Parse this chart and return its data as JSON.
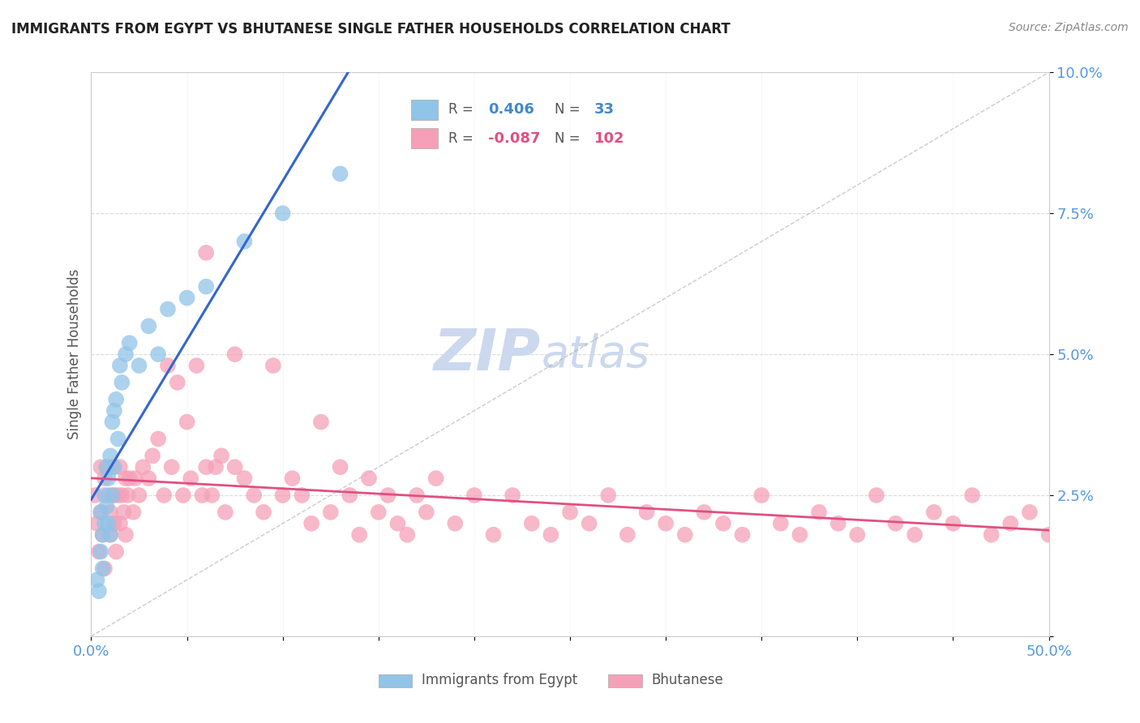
{
  "title": "IMMIGRANTS FROM EGYPT VS BHUTANESE SINGLE FATHER HOUSEHOLDS CORRELATION CHART",
  "source": "Source: ZipAtlas.com",
  "ylabel": "Single Father Households",
  "xlim": [
    0.0,
    0.5
  ],
  "ylim": [
    0.0,
    0.1
  ],
  "yticks": [
    0.0,
    0.025,
    0.05,
    0.075,
    0.1
  ],
  "ytick_labels": [
    "",
    "2.5%",
    "5.0%",
    "7.5%",
    "10.0%"
  ],
  "xtick_labels": [
    "0.0%",
    "",
    "",
    "",
    "",
    "",
    "",
    "",
    "",
    "",
    "50.0%"
  ],
  "blue_R": 0.406,
  "blue_N": 33,
  "pink_R": -0.087,
  "pink_N": 102,
  "blue_color": "#90c4e8",
  "pink_color": "#f5a0b8",
  "blue_line_color": "#3366cc",
  "pink_line_color": "#e05080",
  "grid_color": "#cccccc",
  "title_color": "#222222",
  "axis_color": "#5599dd",
  "watermark_color": "#ccd8ee",
  "legend_bg": "#eef3fb",
  "blue_scatter_x": [
    0.003,
    0.004,
    0.005,
    0.005,
    0.006,
    0.006,
    0.007,
    0.007,
    0.008,
    0.008,
    0.009,
    0.009,
    0.01,
    0.01,
    0.011,
    0.011,
    0.012,
    0.012,
    0.013,
    0.014,
    0.015,
    0.016,
    0.018,
    0.02,
    0.025,
    0.03,
    0.035,
    0.04,
    0.05,
    0.06,
    0.08,
    0.1,
    0.13
  ],
  "blue_scatter_y": [
    0.01,
    0.008,
    0.022,
    0.015,
    0.018,
    0.012,
    0.025,
    0.02,
    0.03,
    0.023,
    0.028,
    0.02,
    0.032,
    0.018,
    0.038,
    0.025,
    0.04,
    0.03,
    0.042,
    0.035,
    0.048,
    0.045,
    0.05,
    0.052,
    0.048,
    0.055,
    0.05,
    0.058,
    0.06,
    0.062,
    0.07,
    0.075,
    0.082
  ],
  "pink_scatter_x": [
    0.002,
    0.003,
    0.004,
    0.005,
    0.005,
    0.006,
    0.007,
    0.007,
    0.008,
    0.009,
    0.01,
    0.01,
    0.011,
    0.012,
    0.012,
    0.013,
    0.014,
    0.015,
    0.015,
    0.016,
    0.017,
    0.018,
    0.018,
    0.019,
    0.02,
    0.022,
    0.023,
    0.025,
    0.027,
    0.03,
    0.032,
    0.035,
    0.038,
    0.04,
    0.042,
    0.045,
    0.048,
    0.05,
    0.052,
    0.055,
    0.058,
    0.06,
    0.063,
    0.065,
    0.068,
    0.07,
    0.075,
    0.08,
    0.085,
    0.09,
    0.095,
    0.1,
    0.105,
    0.11,
    0.115,
    0.12,
    0.125,
    0.13,
    0.135,
    0.14,
    0.145,
    0.15,
    0.155,
    0.16,
    0.165,
    0.17,
    0.175,
    0.18,
    0.19,
    0.2,
    0.21,
    0.22,
    0.23,
    0.24,
    0.25,
    0.26,
    0.27,
    0.28,
    0.29,
    0.3,
    0.31,
    0.32,
    0.33,
    0.34,
    0.35,
    0.36,
    0.37,
    0.38,
    0.39,
    0.4,
    0.41,
    0.42,
    0.43,
    0.44,
    0.45,
    0.46,
    0.47,
    0.48,
    0.49,
    0.5,
    0.06,
    0.075
  ],
  "pink_scatter_y": [
    0.025,
    0.02,
    0.015,
    0.03,
    0.022,
    0.018,
    0.028,
    0.012,
    0.03,
    0.025,
    0.018,
    0.022,
    0.03,
    0.025,
    0.02,
    0.015,
    0.025,
    0.03,
    0.02,
    0.025,
    0.022,
    0.028,
    0.018,
    0.025,
    0.028,
    0.022,
    0.028,
    0.025,
    0.03,
    0.028,
    0.032,
    0.035,
    0.025,
    0.048,
    0.03,
    0.045,
    0.025,
    0.038,
    0.028,
    0.048,
    0.025,
    0.03,
    0.025,
    0.03,
    0.032,
    0.022,
    0.03,
    0.028,
    0.025,
    0.022,
    0.048,
    0.025,
    0.028,
    0.025,
    0.02,
    0.038,
    0.022,
    0.03,
    0.025,
    0.018,
    0.028,
    0.022,
    0.025,
    0.02,
    0.018,
    0.025,
    0.022,
    0.028,
    0.02,
    0.025,
    0.018,
    0.025,
    0.02,
    0.018,
    0.022,
    0.02,
    0.025,
    0.018,
    0.022,
    0.02,
    0.018,
    0.022,
    0.02,
    0.018,
    0.025,
    0.02,
    0.018,
    0.022,
    0.02,
    0.018,
    0.025,
    0.02,
    0.018,
    0.022,
    0.02,
    0.025,
    0.018,
    0.02,
    0.022,
    0.018,
    0.068,
    0.05
  ]
}
